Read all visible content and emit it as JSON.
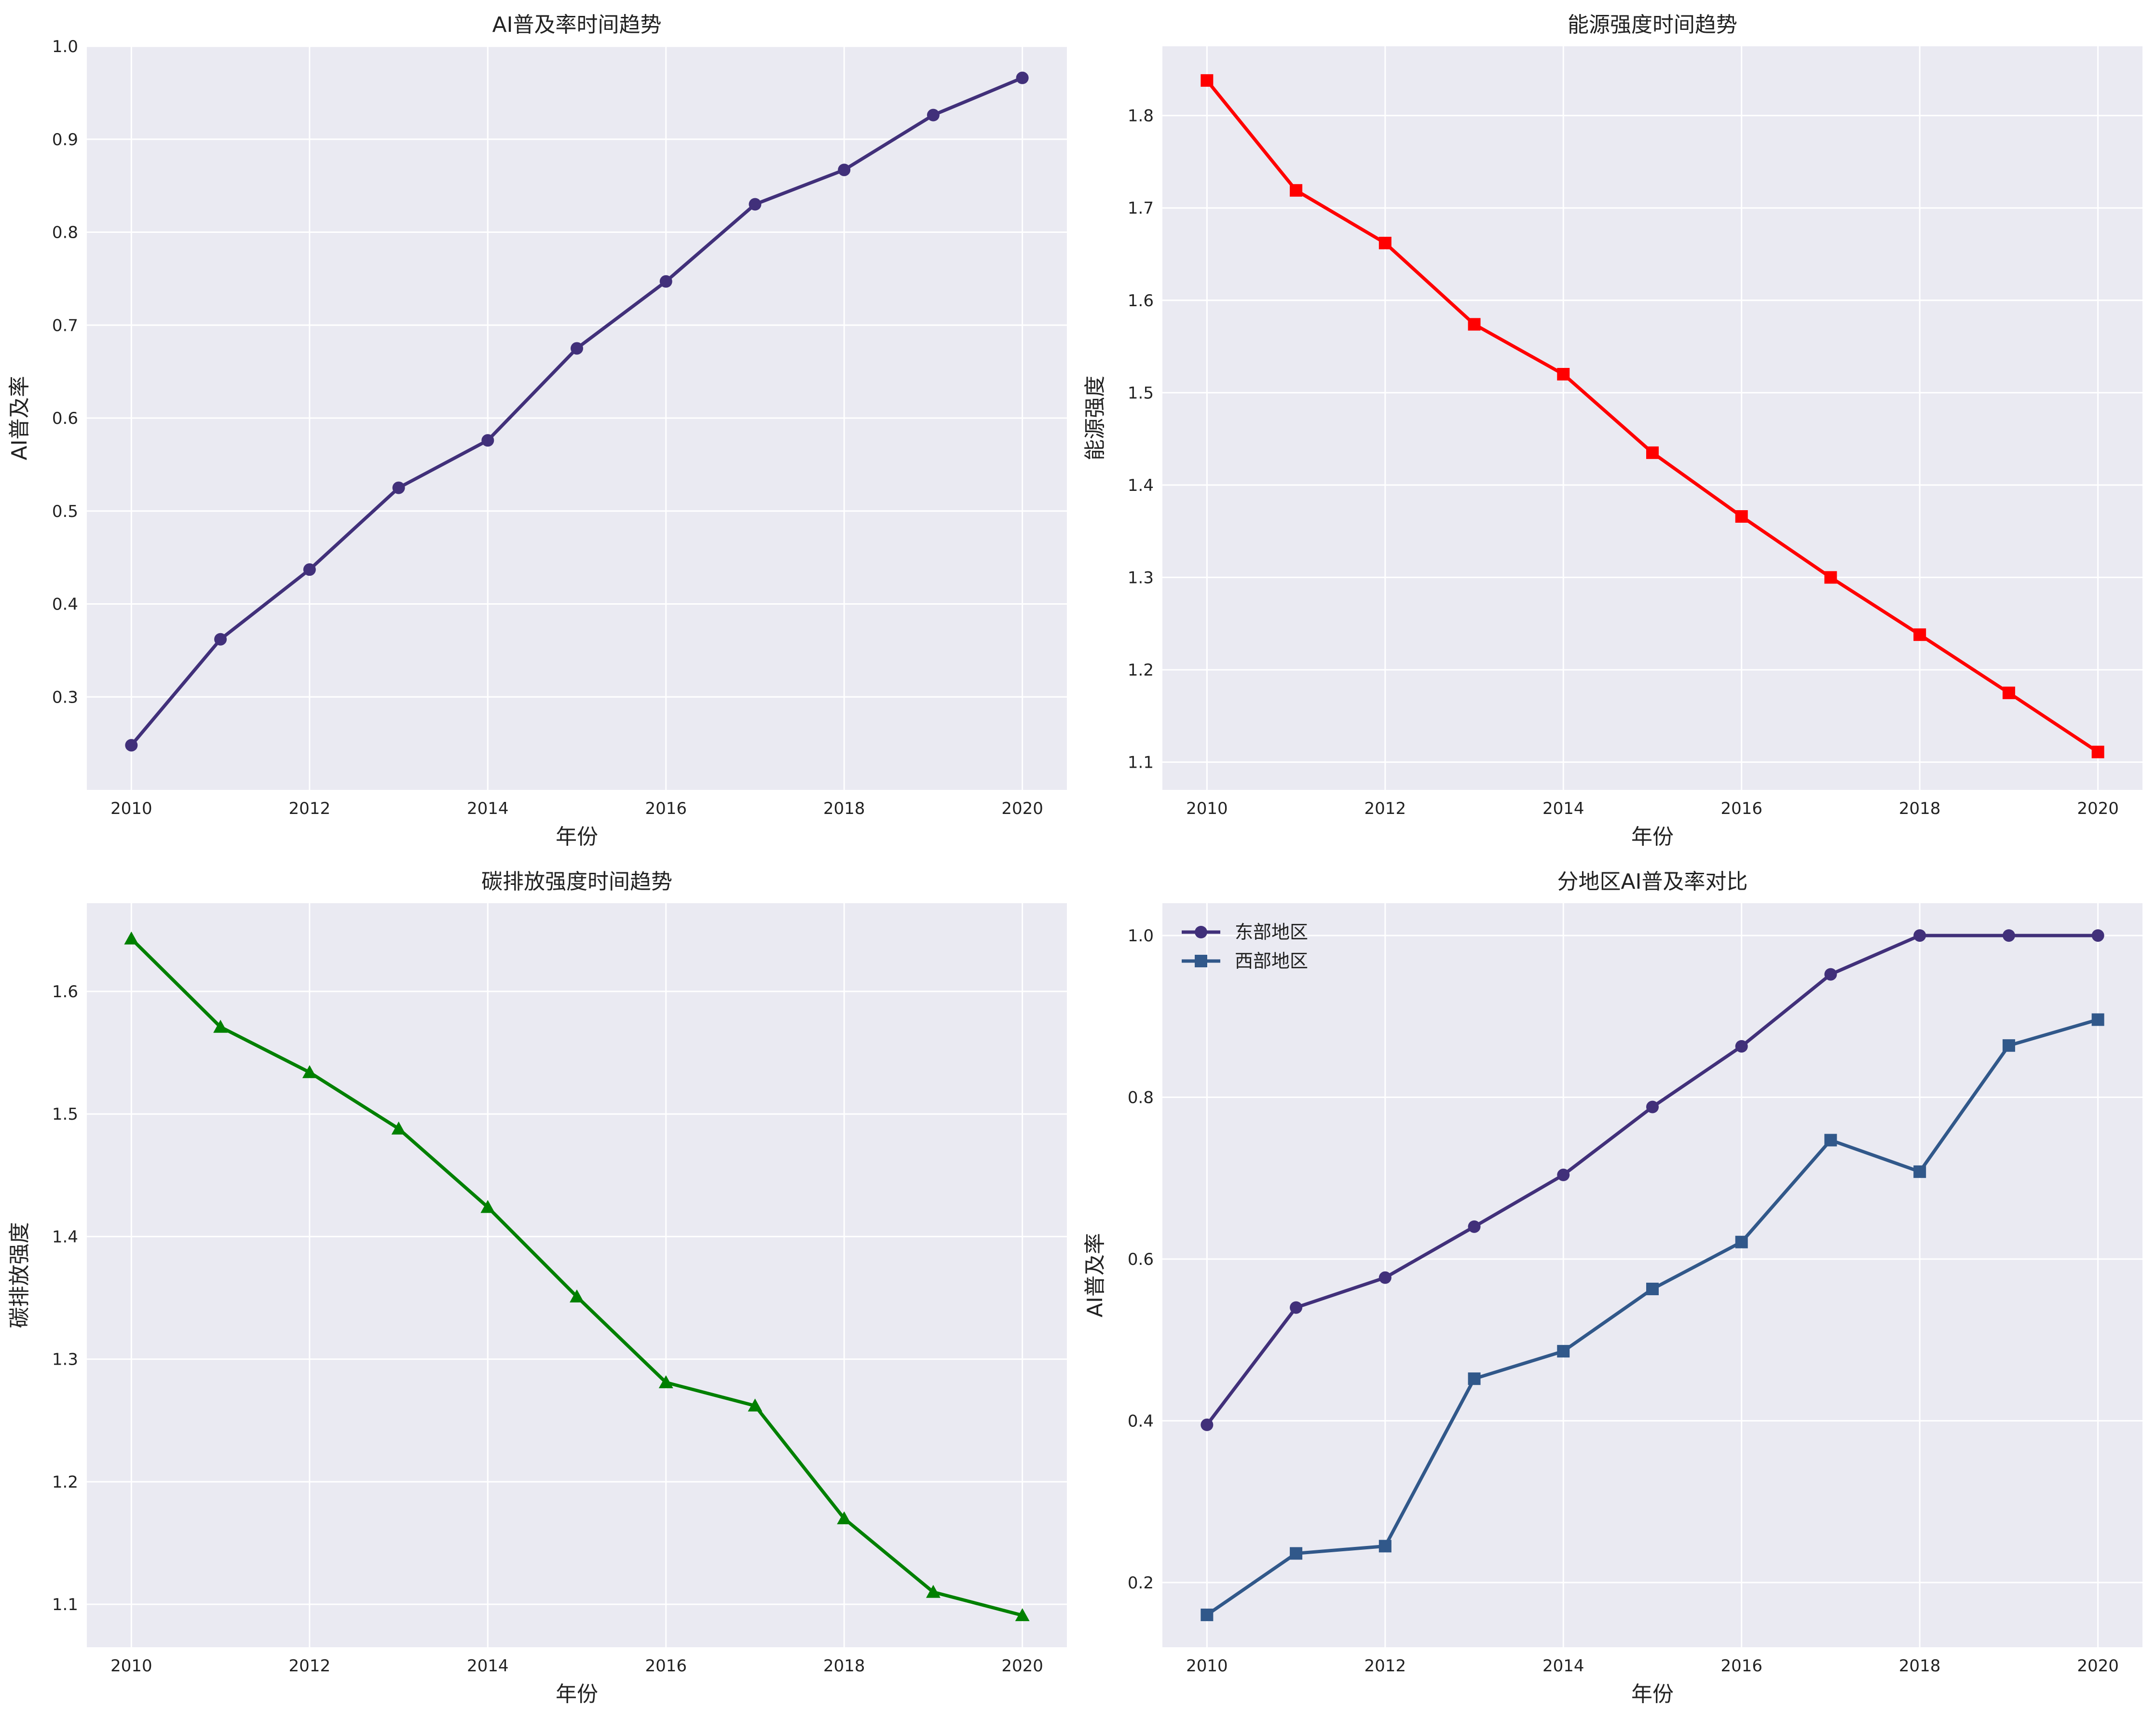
{
  "colors": {
    "panel_background": "#EAEAF2",
    "grid": "#FFFFFF",
    "page_background": "#FFFFFF",
    "text": "#222222"
  },
  "chart_data": [
    {
      "type": "line",
      "title": "AI普及率时间趋势",
      "xlabel": "年份",
      "ylabel": "AI普及率",
      "xlim": [
        2009.5,
        2020.5
      ],
      "ylim": [
        0.2,
        1.0
      ],
      "x_ticks": [
        2010,
        2012,
        2014,
        2016,
        2018,
        2020
      ],
      "y_ticks": [
        0.3,
        0.4,
        0.5,
        0.6,
        0.7,
        0.8,
        0.9,
        1.0
      ],
      "grid": true,
      "x": [
        2010,
        2011,
        2012,
        2013,
        2014,
        2015,
        2016,
        2017,
        2018,
        2019,
        2020
      ],
      "series": [
        {
          "color": "#41307A",
          "marker": "circle",
          "values": [
            0.248,
            0.362,
            0.437,
            0.525,
            0.576,
            0.675,
            0.747,
            0.83,
            0.867,
            0.926,
            0.966
          ]
        }
      ]
    },
    {
      "type": "line",
      "title": "能源强度时间趋势",
      "xlabel": "年份",
      "ylabel": "能源强度",
      "xlim": [
        2009.5,
        2020.5
      ],
      "ylim": [
        1.07,
        1.875
      ],
      "x_ticks": [
        2010,
        2012,
        2014,
        2016,
        2018,
        2020
      ],
      "y_ticks": [
        1.1,
        1.2,
        1.3,
        1.4,
        1.5,
        1.6,
        1.7,
        1.8
      ],
      "grid": true,
      "x": [
        2010,
        2011,
        2012,
        2013,
        2014,
        2015,
        2016,
        2017,
        2018,
        2019,
        2020
      ],
      "series": [
        {
          "color": "#FF0000",
          "marker": "square",
          "values": [
            1.838,
            1.719,
            1.662,
            1.574,
            1.52,
            1.435,
            1.366,
            1.3,
            1.238,
            1.175,
            1.111
          ]
        }
      ]
    },
    {
      "type": "line",
      "title": "碳排放强度时间趋势",
      "xlabel": "年份",
      "ylabel": "碳排放强度",
      "xlim": [
        2009.5,
        2020.5
      ],
      "ylim": [
        1.065,
        1.672
      ],
      "x_ticks": [
        2010,
        2012,
        2014,
        2016,
        2018,
        2020
      ],
      "y_ticks": [
        1.1,
        1.2,
        1.3,
        1.4,
        1.5,
        1.6
      ],
      "grid": true,
      "x": [
        2010,
        2011,
        2012,
        2013,
        2014,
        2015,
        2016,
        2017,
        2018,
        2019,
        2020
      ],
      "series": [
        {
          "color": "#008000",
          "marker": "triangle",
          "values": [
            1.643,
            1.571,
            1.534,
            1.488,
            1.424,
            1.351,
            1.281,
            1.262,
            1.17,
            1.11,
            1.091
          ]
        }
      ]
    },
    {
      "type": "line",
      "title": "分地区AI普及率对比",
      "xlabel": "年份",
      "ylabel": "AI普及率",
      "xlim": [
        2009.5,
        2020.5
      ],
      "ylim": [
        0.12,
        1.04
      ],
      "x_ticks": [
        2010,
        2012,
        2014,
        2016,
        2018,
        2020
      ],
      "y_ticks": [
        0.2,
        0.4,
        0.6,
        0.8,
        1.0
      ],
      "grid": true,
      "legend": "top-left",
      "x": [
        2010,
        2011,
        2012,
        2013,
        2014,
        2015,
        2016,
        2017,
        2018,
        2019,
        2020
      ],
      "series": [
        {
          "name": "东部地区",
          "color": "#41307A",
          "marker": "circle",
          "values": [
            0.395,
            0.54,
            0.577,
            0.64,
            0.704,
            0.788,
            0.863,
            0.952,
            1.0,
            1.0,
            1.0
          ]
        },
        {
          "name": "西部地区",
          "color": "#31588A",
          "marker": "square",
          "values": [
            0.16,
            0.236,
            0.245,
            0.452,
            0.486,
            0.563,
            0.621,
            0.747,
            0.708,
            0.864,
            0.896
          ]
        }
      ]
    }
  ]
}
